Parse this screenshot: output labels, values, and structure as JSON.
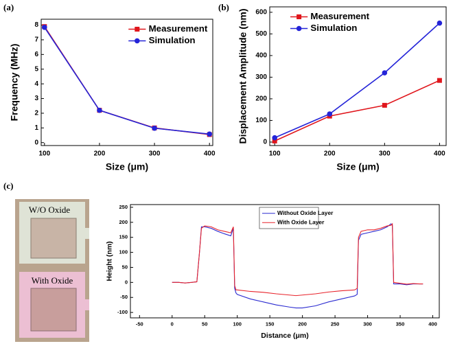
{
  "chart_data": [
    {
      "type": "line",
      "panel_label": "(a)",
      "x_label": "Size (μm)",
      "y_label": "Frequency (MHz)",
      "x": [
        100,
        200,
        300,
        400
      ],
      "series": [
        {
          "name": "Measurement",
          "color": "#e0161c",
          "marker": "square",
          "values": [
            7.9,
            2.2,
            1.0,
            0.55
          ]
        },
        {
          "name": "Simulation",
          "color": "#2424d8",
          "marker": "circle",
          "values": [
            7.85,
            2.2,
            0.98,
            0.58
          ]
        }
      ],
      "xlim": [
        94,
        406
      ],
      "xticks": [
        100,
        200,
        300,
        400
      ],
      "ylim": [
        -0.2,
        8.4
      ],
      "yticks": [
        0,
        1,
        2,
        3,
        4,
        5,
        6,
        7,
        8
      ],
      "legend": "upper right"
    },
    {
      "type": "line",
      "panel_label": "(b)",
      "x_label": "Size (μm)",
      "y_label": "Displacement Amplitude (nm)",
      "x": [
        100,
        200,
        300,
        400
      ],
      "series": [
        {
          "name": "Measurement",
          "color": "#e0161c",
          "marker": "square",
          "values": [
            5,
            120,
            170,
            285
          ]
        },
        {
          "name": "Simulation",
          "color": "#2424d8",
          "marker": "circle",
          "values": [
            20,
            130,
            320,
            550
          ]
        }
      ],
      "xlim": [
        91,
        412
      ],
      "xticks": [
        100,
        200,
        300,
        400
      ],
      "ylim": [
        -16,
        625
      ],
      "yticks": [
        0,
        100,
        200,
        300,
        400,
        500,
        600
      ],
      "legend": "upper left"
    },
    {
      "type": "line",
      "panel_label": "(c)",
      "x_label": "Distance (μm)",
      "y_label": "Height (nm)",
      "x": [
        0,
        10,
        20,
        30,
        38,
        42,
        45,
        50,
        60,
        70,
        80,
        90,
        94,
        96,
        98,
        100,
        120,
        140,
        160,
        180,
        190,
        200,
        220,
        240,
        260,
        280,
        284,
        286,
        290,
        300,
        310,
        320,
        330,
        336,
        338,
        340,
        350,
        360,
        370,
        380,
        385
      ],
      "series": [
        {
          "name": "Without Oxide Layer",
          "color": "#2a2ad0",
          "values": [
            0,
            0,
            -2,
            0,
            2,
            100,
            185,
            185,
            180,
            170,
            162,
            155,
            180,
            -20,
            -35,
            -40,
            -55,
            -65,
            -75,
            -82,
            -85,
            -85,
            -78,
            -65,
            -55,
            -45,
            -40,
            140,
            160,
            165,
            170,
            175,
            185,
            195,
            190,
            -5,
            -5,
            -8,
            -5,
            -5,
            -5
          ]
        },
        {
          "name": "With Oxide Layer",
          "color": "#e8222a",
          "values": [
            0,
            0,
            -2,
            0,
            2,
            100,
            180,
            188,
            185,
            175,
            170,
            165,
            185,
            -10,
            -25,
            -25,
            -30,
            -33,
            -38,
            -42,
            -44,
            -42,
            -38,
            -32,
            -28,
            -25,
            -20,
            150,
            170,
            175,
            175,
            180,
            188,
            190,
            195,
            0,
            -3,
            -6,
            -4,
            -5,
            -5
          ]
        }
      ],
      "xlim": [
        -64,
        410
      ],
      "xticks": [
        -50,
        0,
        50,
        100,
        150,
        200,
        250,
        300,
        350,
        400
      ],
      "ylim": [
        -118,
        259
      ],
      "yticks": [
        -100,
        -50,
        0,
        50,
        100,
        150,
        200,
        250
      ],
      "legend": "upper center",
      "legend_box": true
    }
  ],
  "photo": {
    "labels": [
      "W/O Oxide",
      "With Oxide"
    ]
  }
}
